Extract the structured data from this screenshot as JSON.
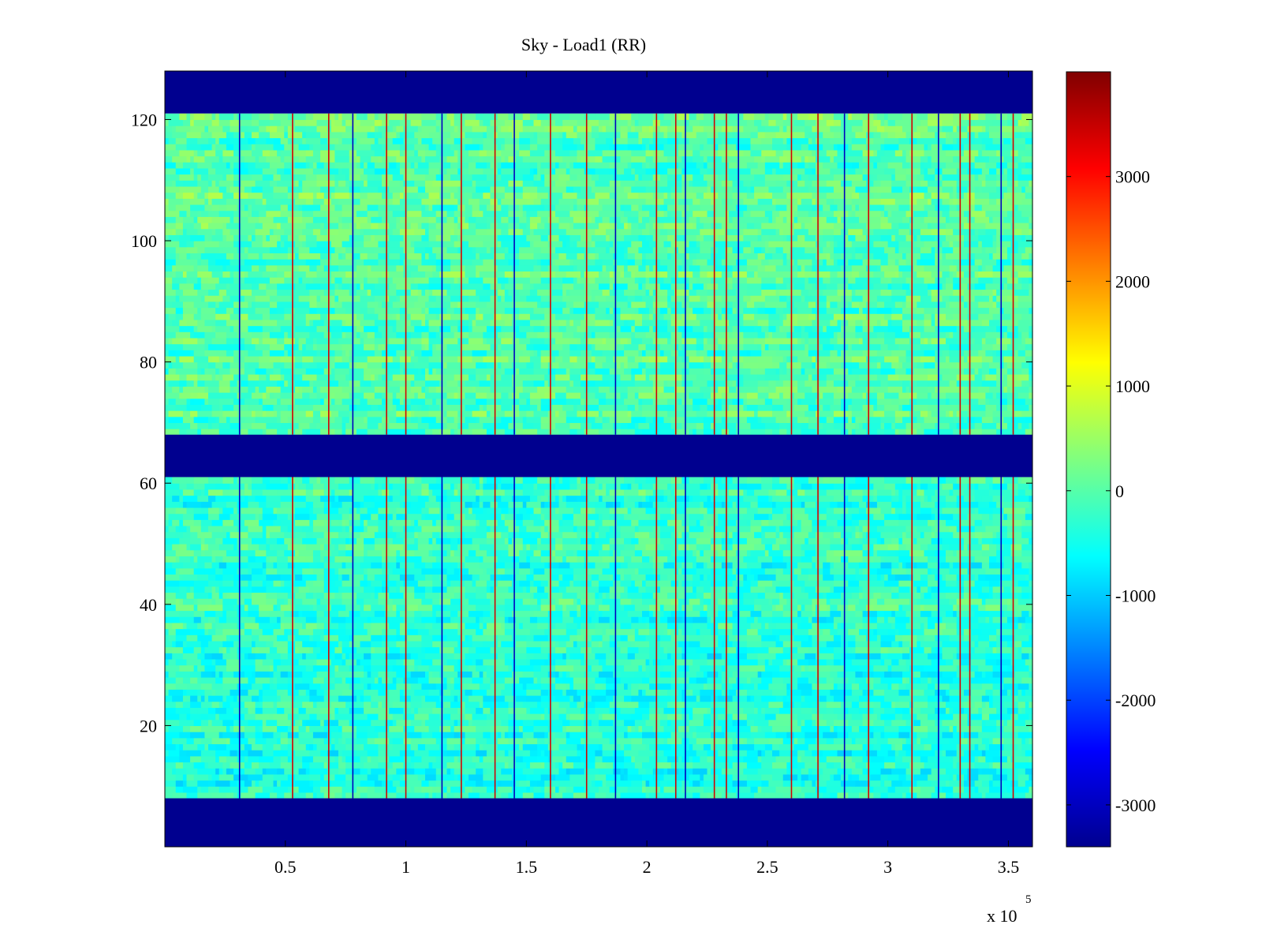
{
  "chart_data": {
    "type": "heatmap",
    "title": "Sky - Load1 (RR)",
    "xlabel": "",
    "ylabel": "",
    "x_multiplier_label": "x 10",
    "x_multiplier_exponent": "5",
    "xlim": [
      0,
      3.6
    ],
    "ylim": [
      0,
      128
    ],
    "x_ticks": [
      0.5,
      1,
      1.5,
      2,
      2.5,
      3,
      3.5
    ],
    "x_tick_labels": [
      "0.5",
      "1",
      "1.5",
      "2",
      "2.5",
      "3",
      "3.5"
    ],
    "y_ticks": [
      20,
      40,
      60,
      80,
      100,
      120
    ],
    "y_tick_labels": [
      "20",
      "40",
      "60",
      "80",
      "100",
      "120"
    ],
    "colormap": "jet",
    "clim": [
      -3400,
      4000
    ],
    "colorbar_ticks": [
      -3000,
      -2000,
      -1000,
      0,
      1000,
      2000,
      3000
    ],
    "colorbar_tick_labels": [
      "-3000",
      "-2000",
      "-1000",
      "0",
      "1000",
      "2000",
      "3000"
    ],
    "masked_rows": [
      {
        "from": 0,
        "to": 8,
        "value": -3400
      },
      {
        "from": 61,
        "to": 68,
        "value": -3400
      },
      {
        "from": 121,
        "to": 128,
        "value": -3400
      }
    ],
    "bands": [
      {
        "name": "lower",
        "from": 8,
        "to": 61,
        "typical_value": -300
      },
      {
        "name": "upper",
        "from": 68,
        "to": 121,
        "typical_value": 0
      }
    ],
    "strong_columns_x": [
      0.31,
      0.53,
      0.68,
      0.78,
      0.92,
      1.0,
      1.15,
      1.23,
      1.37,
      1.45,
      1.6,
      1.75,
      1.87,
      2.04,
      2.12,
      2.16,
      2.28,
      2.33,
      2.38,
      2.6,
      2.71,
      2.82,
      2.92,
      3.1,
      3.21,
      3.3,
      3.34,
      3.47,
      3.52
    ],
    "grid": false,
    "colors": {
      "masked": "#00008f",
      "background": "#ffffff"
    }
  }
}
